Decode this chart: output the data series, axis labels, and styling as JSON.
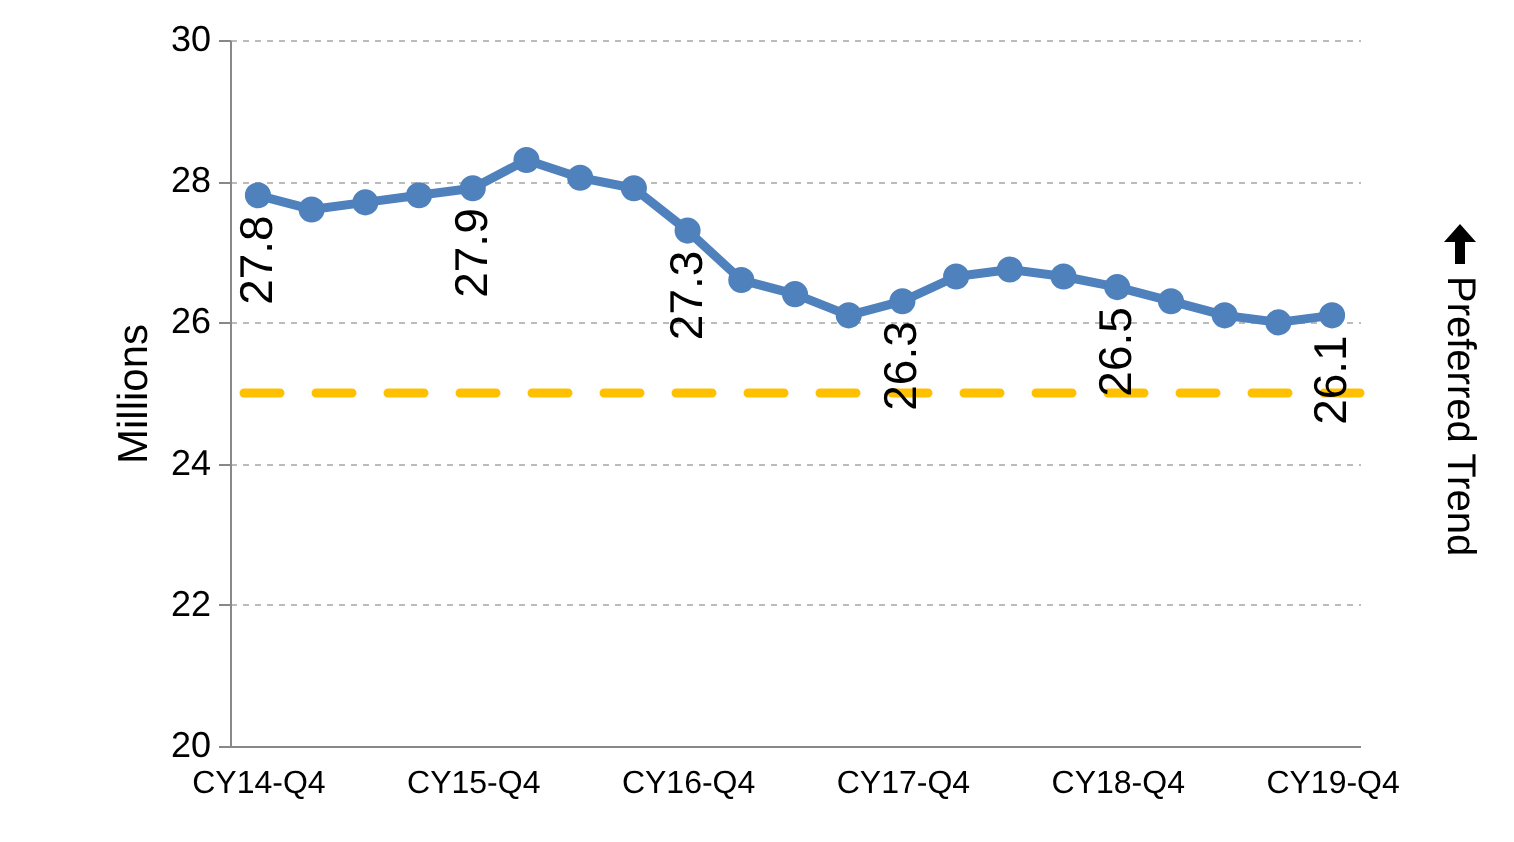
{
  "chart_data": {
    "type": "line",
    "ylabel": "Millions",
    "categories": [
      "CY14-Q4",
      null,
      null,
      null,
      "CY15-Q4",
      null,
      null,
      null,
      "CY16-Q4",
      null,
      null,
      null,
      "CY17-Q4",
      null,
      null,
      null,
      "CY18-Q4",
      null,
      null,
      null,
      "CY19-Q4"
    ],
    "series": [
      {
        "color": "#4f81bd",
        "values": [
          27.8,
          27.6,
          27.7,
          27.8,
          27.9,
          28.3,
          28.05,
          27.9,
          27.3,
          26.6,
          26.4,
          26.1,
          26.3,
          26.65,
          26.75,
          26.65,
          26.5,
          26.3,
          26.1,
          26.0,
          26.1
        ],
        "value_labels": [
          "27.8",
          null,
          null,
          null,
          "27.9",
          null,
          null,
          null,
          "27.3",
          null,
          null,
          null,
          "26.3",
          null,
          null,
          null,
          "26.5",
          null,
          null,
          null,
          "26.1"
        ]
      }
    ],
    "ylim": [
      20,
      30
    ],
    "yticks": [
      20,
      22,
      24,
      26,
      28,
      30
    ],
    "grid": "y",
    "marker": "circle",
    "line_style": "solid",
    "ref_lines": [
      {
        "axis": "y",
        "value": 25,
        "color": "#ffc000",
        "line_style": "dashed"
      }
    ],
    "annotations": [
      "Preferred Trend"
    ]
  }
}
